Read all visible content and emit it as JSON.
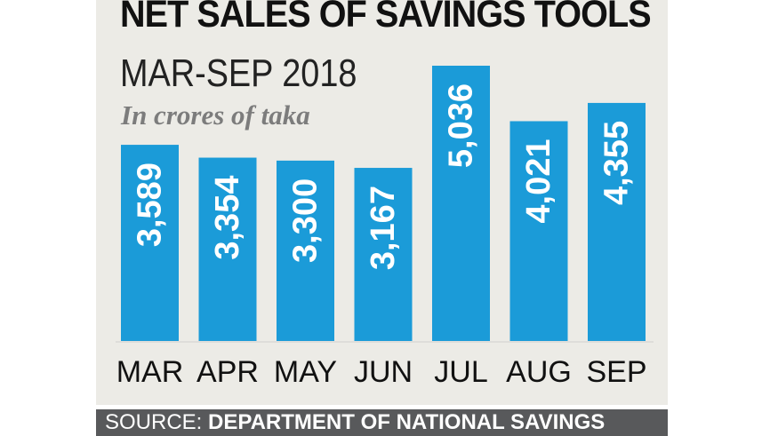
{
  "chart_data": {
    "type": "bar",
    "title": "NET SALES OF SAVINGS TOOLS",
    "subtitle": "MAR-SEP 2018",
    "unit_note": "In crores of taka",
    "categories": [
      "MAR",
      "APR",
      "MAY",
      "JUN",
      "JUL",
      "AUG",
      "SEP"
    ],
    "values": [
      3589,
      3354,
      3300,
      3167,
      5036,
      4021,
      4355
    ],
    "value_labels": [
      "3,589",
      "3,354",
      "3,300",
      "3,167",
      "5,036",
      "4,021",
      "4,355"
    ],
    "bar_color": "#1b9bd8",
    "ylim": [
      0,
      5036
    ],
    "grid": false,
    "legend": "none"
  },
  "source": {
    "label": "SOURCE:",
    "name": "DEPARTMENT OF NATIONAL SAVINGS"
  }
}
